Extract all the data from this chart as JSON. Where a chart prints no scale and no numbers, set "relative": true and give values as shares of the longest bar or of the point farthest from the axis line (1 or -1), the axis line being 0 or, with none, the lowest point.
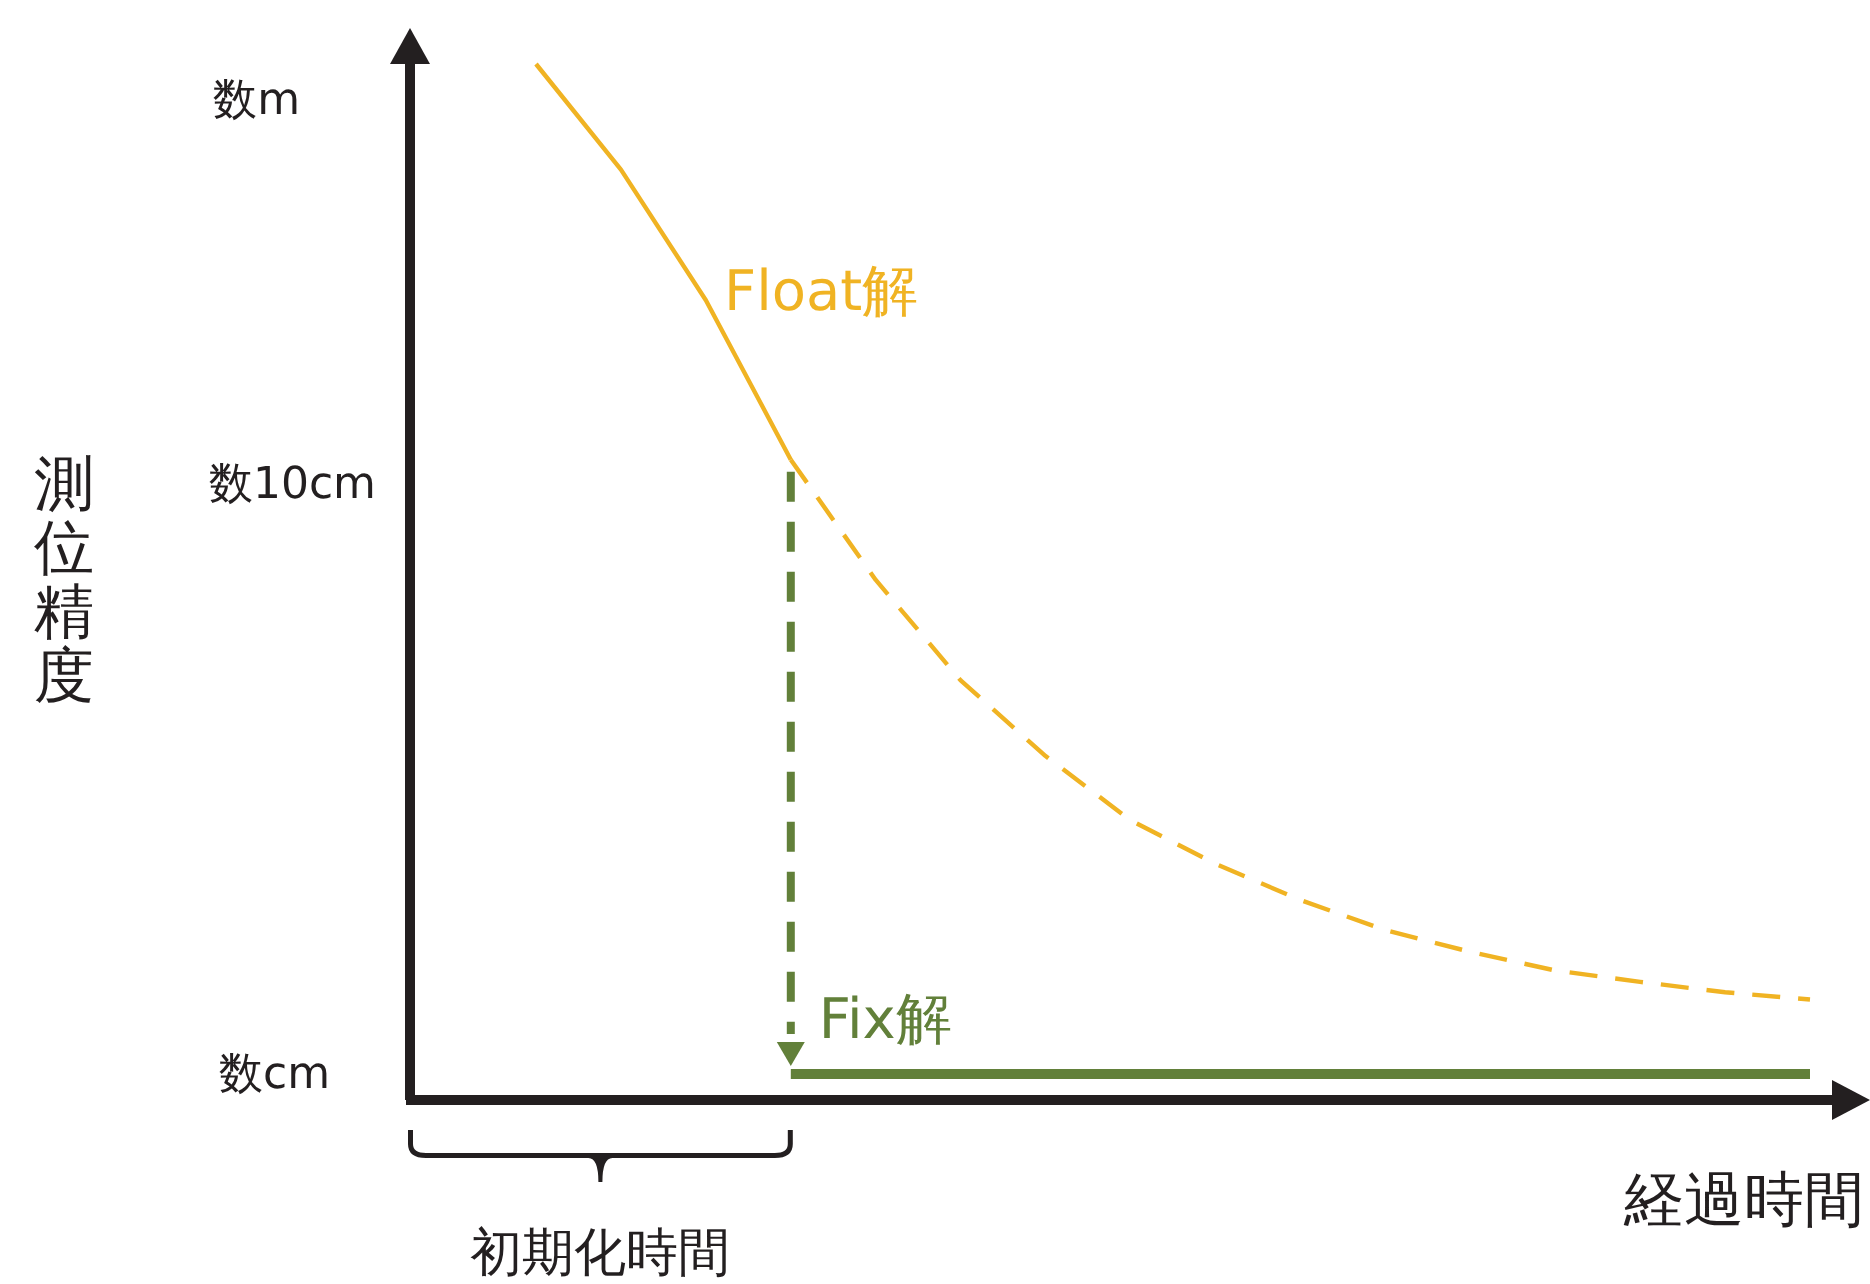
{
  "chart_data": {
    "type": "line",
    "relative": true,
    "xlabel": "経過時間",
    "categories": [
      null,
      null,
      null,
      null,
      null,
      null,
      null,
      null,
      null,
      null,
      null,
      null,
      null,
      null,
      null,
      null
    ],
    "series": [
      {
        "name": "Float解",
        "color": "#f0b323",
        "line_style": "solid",
        "values": [
          1.0,
          0.898,
          0.772,
          0.618,
          null,
          null,
          null,
          null,
          null,
          null,
          null,
          null,
          null,
          null,
          null,
          null
        ]
      },
      {
        "color": "#f0b323",
        "line_style": "dashed",
        "values": [
          null,
          null,
          null,
          0.618,
          0.502,
          0.405,
          0.332,
          0.27,
          0.228,
          0.193,
          0.164,
          0.143,
          0.125,
          0.114,
          0.104,
          0.097
        ]
      },
      {
        "name": "Fix解",
        "color": "#62803a",
        "line_style": "solid",
        "values": [
          null,
          null,
          null,
          0.025,
          0.025,
          0.025,
          0.025,
          0.025,
          0.025,
          0.025,
          0.025,
          0.025,
          0.025,
          0.025,
          0.025,
          0.025
        ]
      }
    ],
    "annotations": [
      "数m",
      "数10cm",
      "数cm",
      "初期化時間",
      "測位精度"
    ]
  }
}
